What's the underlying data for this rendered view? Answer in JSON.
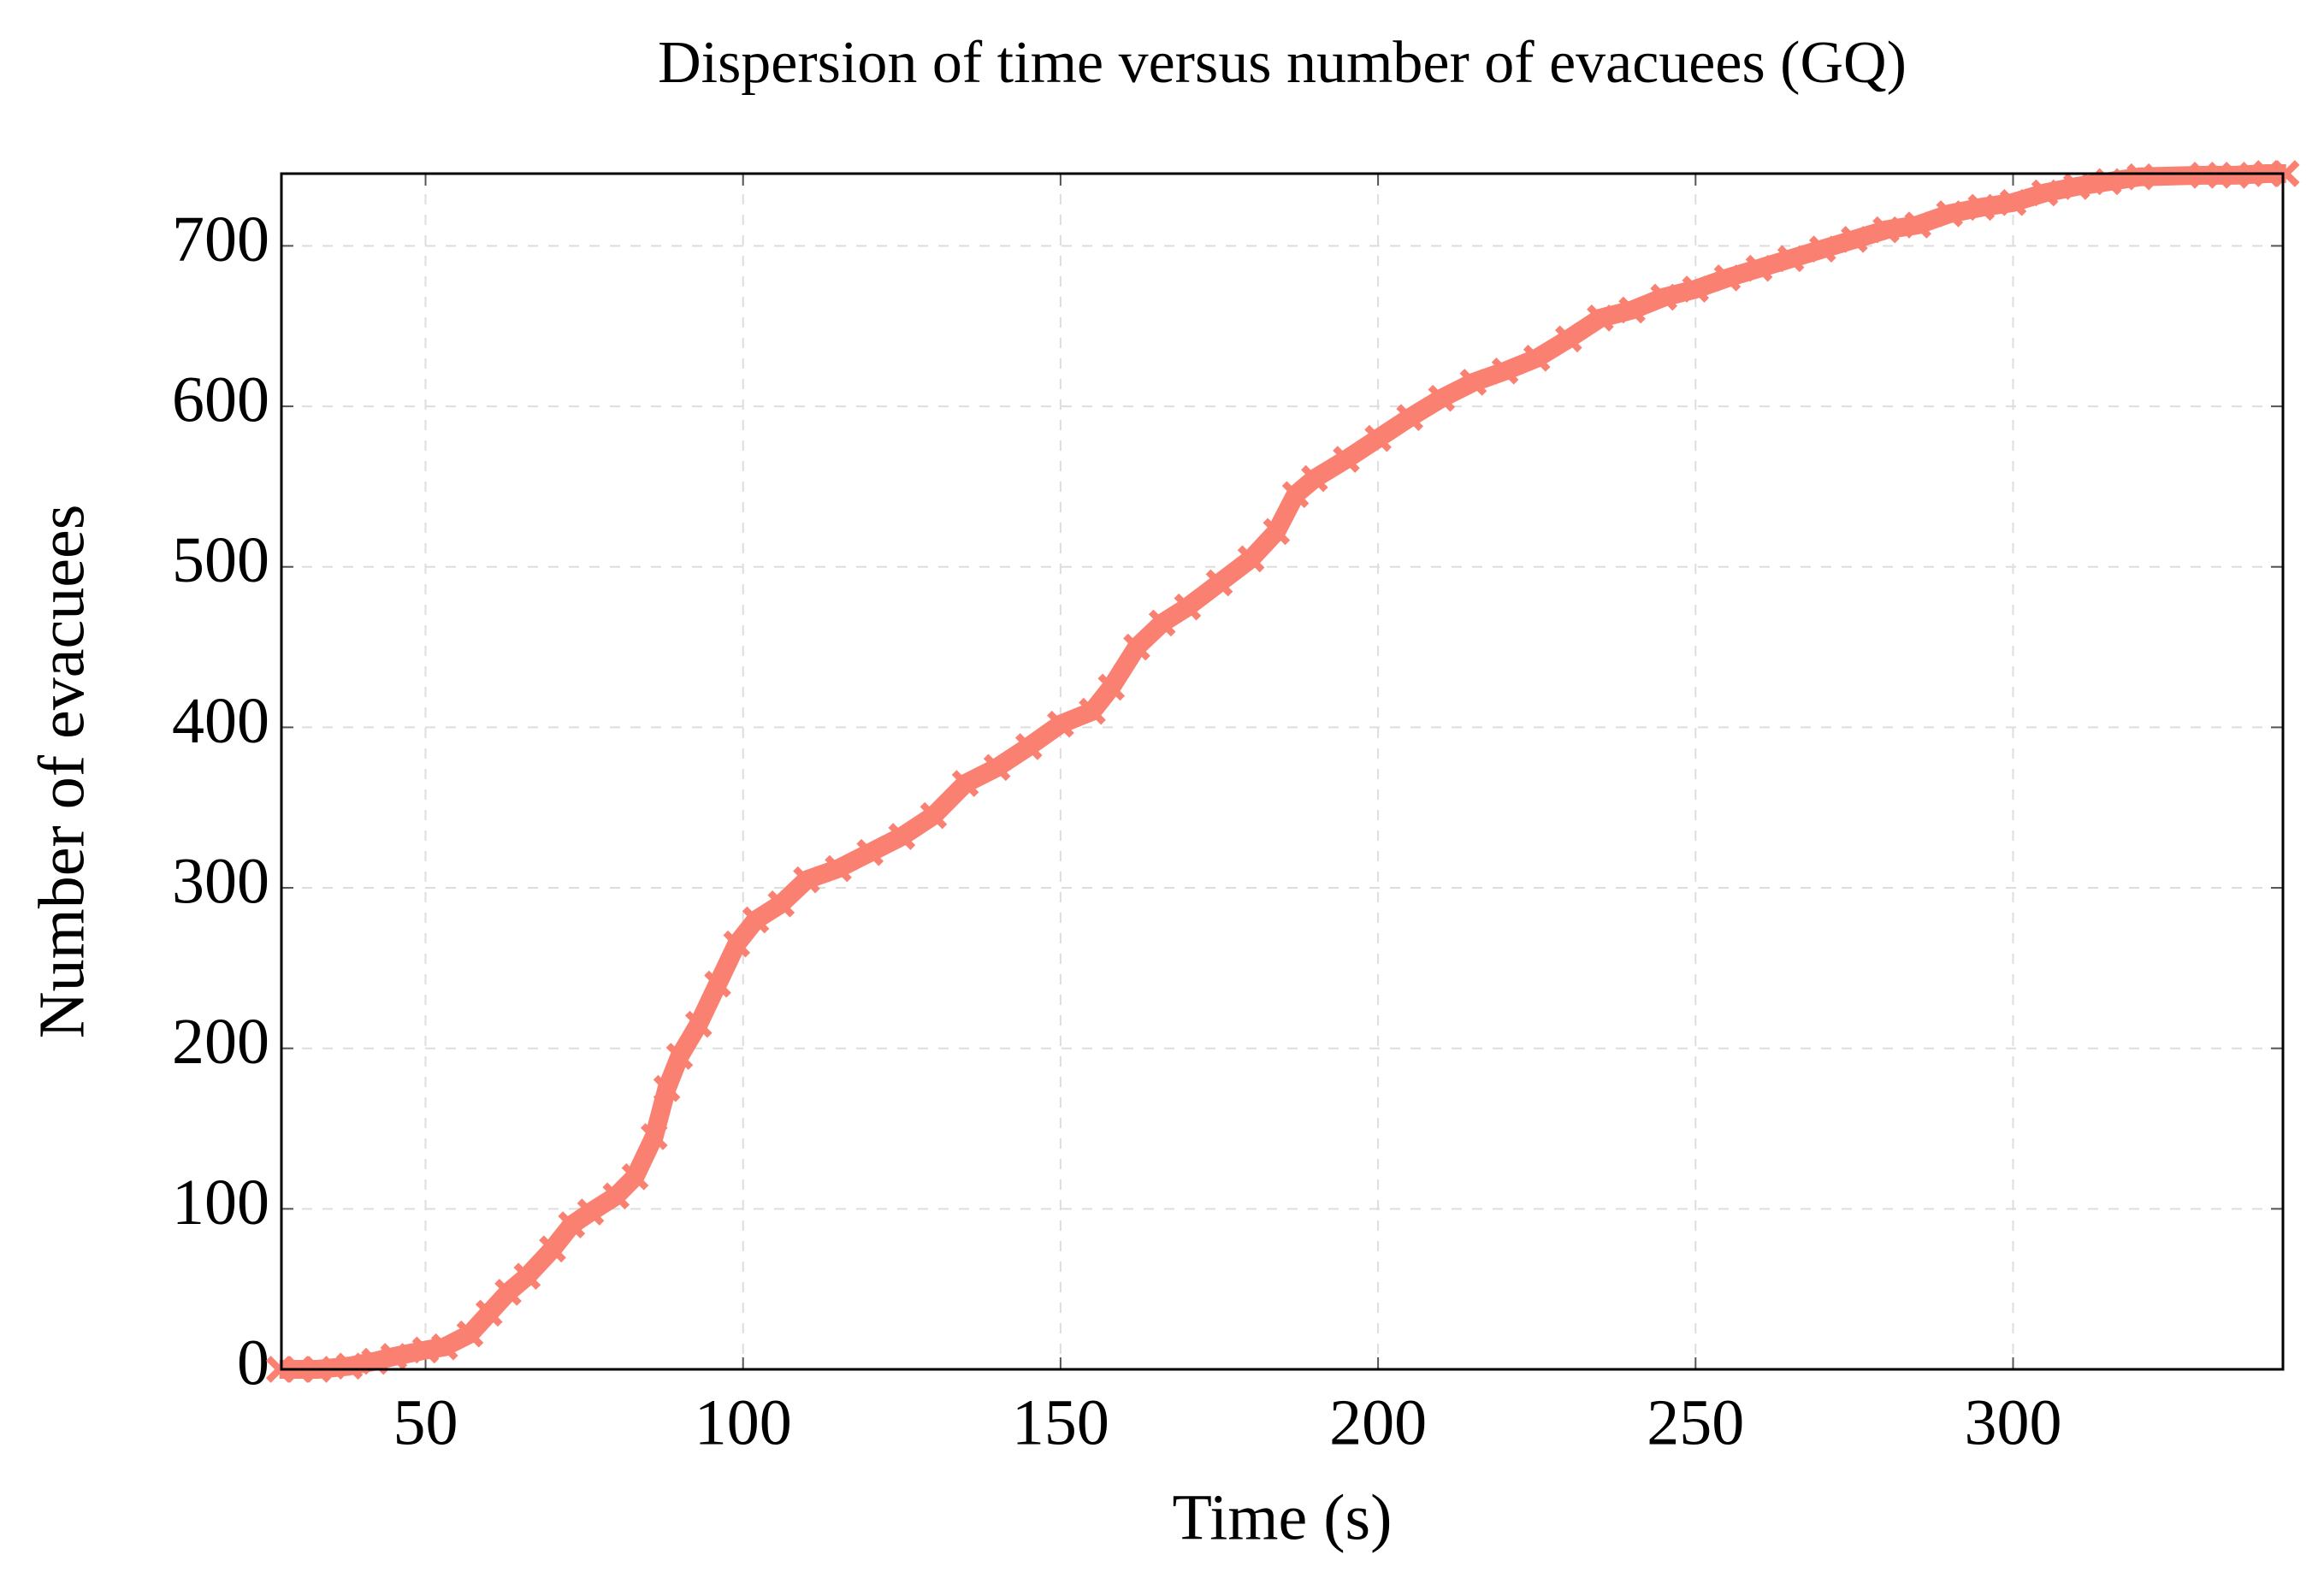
{
  "chart_data": {
    "type": "line",
    "title": "Dispersion of time versus number of evacuees (GQ)",
    "x_label": "Time (s)",
    "y_label": "Number of evacuees",
    "series": [
      {
        "name": "GQ",
        "color": "#fa8072",
        "x": [
          27,
          30,
          33,
          38,
          42,
          45,
          50,
          53,
          57,
          60,
          63,
          66,
          70,
          73,
          76,
          80,
          83,
          86,
          88,
          90,
          93,
          96,
          99,
          102,
          106,
          110,
          115,
          120,
          125,
          130,
          135,
          140,
          145,
          150,
          155,
          158,
          162,
          166,
          170,
          175,
          180,
          184,
          187,
          190,
          195,
          200,
          205,
          210,
          215,
          220,
          225,
          230,
          235,
          240,
          245,
          250,
          255,
          260,
          265,
          270,
          275,
          280,
          285,
          290,
          295,
          300,
          305,
          310,
          315,
          320,
          330,
          335,
          340,
          343
        ],
        "values": [
          0,
          0,
          0,
          2,
          5,
          8,
          12,
          14,
          22,
          35,
          48,
          58,
          75,
          90,
          98,
          108,
          120,
          145,
          175,
          195,
          215,
          240,
          265,
          280,
          290,
          305,
          312,
          322,
          332,
          345,
          365,
          375,
          388,
          402,
          410,
          425,
          450,
          465,
          475,
          490,
          505,
          522,
          545,
          555,
          567,
          580,
          593,
          605,
          615,
          622,
          630,
          642,
          655,
          660,
          668,
          673,
          680,
          686,
          692,
          698,
          704,
          710,
          713,
          720,
          724,
          727,
          733,
          737,
          740,
          743,
          744,
          744,
          745,
          745
        ]
      }
    ],
    "xlim": [
      27.3,
      342.5
    ],
    "ylim": [
      0,
      745
    ],
    "xticks": [
      50,
      100,
      150,
      200,
      250,
      300
    ],
    "yticks": [
      0,
      100,
      200,
      300,
      400,
      500,
      600,
      700
    ],
    "grid": true
  }
}
